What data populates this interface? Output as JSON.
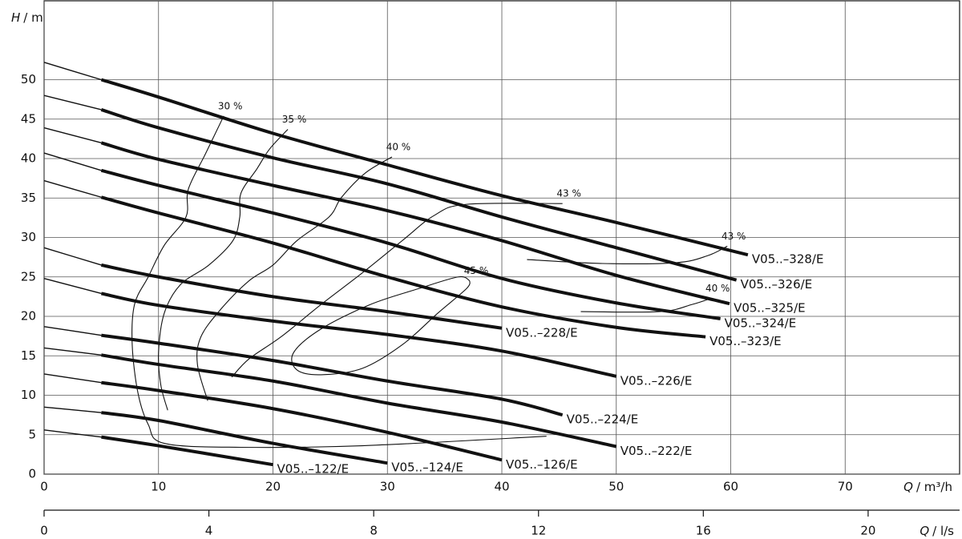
{
  "chart_data": {
    "type": "line",
    "xlabel_symbol": "Q",
    "xlabel_unit": "/ m³/h",
    "x2label_symbol": "Q",
    "x2label_unit": "/ l/s",
    "ylabel_symbol": "H",
    "ylabel_unit": "/ m",
    "xlim": [
      0,
      80
    ],
    "xticks": [
      0,
      10,
      20,
      30,
      40,
      50,
      60,
      70
    ],
    "x2lim": [
      0,
      22.22
    ],
    "x2ticks": [
      0,
      4,
      8,
      12,
      16,
      20
    ],
    "ylim": [
      0,
      60
    ],
    "yticks": [
      0,
      5,
      10,
      15,
      20,
      25,
      30,
      35,
      40,
      45,
      50
    ],
    "grid": true,
    "color": "#111111",
    "series": [
      {
        "name": "V05..–328/E",
        "x": [
          0,
          5,
          10,
          20,
          30,
          40,
          50,
          61.5
        ],
        "values": [
          52.2,
          50,
          47.8,
          43.2,
          39.2,
          35.3,
          31.9,
          27.8
        ]
      },
      {
        "name": "V05..–326/E",
        "x": [
          0,
          5,
          10,
          20,
          30,
          40,
          50,
          60.5
        ],
        "values": [
          48.0,
          46.2,
          43.9,
          40.1,
          36.8,
          32.6,
          28.7,
          24.6
        ]
      },
      {
        "name": "V05..–325/E",
        "x": [
          0,
          5,
          10,
          20,
          30,
          40,
          50,
          59.9
        ],
        "values": [
          43.9,
          42.0,
          39.9,
          36.6,
          33.4,
          29.6,
          25.2,
          21.6
        ]
      },
      {
        "name": "V05..–324/E",
        "x": [
          0,
          5,
          10,
          20,
          30,
          40,
          50,
          59.1
        ],
        "values": [
          40.7,
          38.5,
          36.6,
          33.1,
          29.3,
          24.8,
          21.7,
          19.7
        ]
      },
      {
        "name": "V05..–323/E",
        "x": [
          0,
          5,
          10,
          20,
          30,
          40,
          50,
          57.8
        ],
        "values": [
          37.2,
          35.1,
          33.1,
          29.3,
          25.0,
          21.2,
          18.6,
          17.4
        ]
      },
      {
        "name": "V05..–228/E",
        "x": [
          0,
          5,
          10,
          20,
          30,
          40
        ],
        "values": [
          28.7,
          26.5,
          25.0,
          22.5,
          20.6,
          18.5
        ]
      },
      {
        "name": "V05..–226/E",
        "x": [
          0,
          5,
          10,
          20,
          30,
          40,
          50
        ],
        "values": [
          24.8,
          22.9,
          21.4,
          19.4,
          17.7,
          15.6,
          12.4
        ]
      },
      {
        "name": "V05..–224/E",
        "x": [
          0,
          5,
          10,
          20,
          30,
          40,
          45.3
        ],
        "values": [
          18.7,
          17.6,
          16.6,
          14.4,
          11.8,
          9.5,
          7.5
        ]
      },
      {
        "name": "V05..–222/E",
        "x": [
          0,
          5,
          10,
          20,
          30,
          40,
          50
        ],
        "values": [
          16.0,
          15.1,
          13.9,
          11.8,
          9.0,
          6.6,
          3.5
        ]
      },
      {
        "name": "V05..–126/E",
        "x": [
          0,
          5,
          10,
          20,
          30,
          40
        ],
        "values": [
          12.7,
          11.6,
          10.6,
          8.3,
          5.3,
          1.8
        ]
      },
      {
        "name": "V05..–124/E",
        "x": [
          0,
          5,
          10,
          20,
          30
        ],
        "values": [
          8.5,
          7.8,
          6.8,
          3.9,
          1.4
        ]
      },
      {
        "name": "V05..–122/E",
        "x": [
          0,
          5,
          10,
          20
        ],
        "values": [
          5.6,
          4.7,
          3.6,
          1.2
        ]
      }
    ],
    "efficiency_curves": [
      {
        "name": "30 %",
        "x": [
          15.7,
          14.1,
          12.6,
          12.4,
          10.5,
          9.1,
          7.9,
          7.7,
          8.2,
          9.1,
          10.5,
          17.2,
          27.8,
          43.9
        ],
        "values": [
          45.4,
          40.6,
          36.1,
          32.6,
          29.0,
          25.0,
          21.5,
          16.4,
          10.3,
          6.3,
          3.9,
          3.4,
          3.6,
          4.8
        ]
      },
      {
        "name": "35 %",
        "x": [
          21.3,
          19.7,
          18.6,
          17.2,
          17.1,
          16.5,
          14.4,
          11.9,
          10.5,
          10.0,
          10.2,
          10.8
        ],
        "values": [
          43.7,
          41.2,
          38.7,
          35.6,
          32.6,
          29.6,
          26.5,
          24.0,
          20.4,
          15.4,
          11.3,
          8.1
        ]
      },
      {
        "name": "40 %",
        "x": [
          30.4,
          28.1,
          26.0,
          24.9,
          22.1,
          20.0,
          17.9,
          15.5,
          13.7,
          13.4,
          14.3
        ],
        "values": [
          40.2,
          38.2,
          35.1,
          32.6,
          29.6,
          26.5,
          24.5,
          21.0,
          17.4,
          13.9,
          9.3
        ]
      },
      {
        "name": "43 %",
        "x": [
          45.3,
          36.9,
          34.1,
          31.3,
          27.8,
          24.2,
          20.7,
          17.9,
          16.4
        ],
        "values": [
          34.3,
          34.2,
          32.8,
          29.6,
          25.5,
          21.5,
          17.4,
          14.6,
          12.3
        ]
      },
      {
        "name": "45 %",
        "x": [
          37.2,
          36.2,
          32.7,
          28.5,
          24.2,
          21.8,
          22.1,
          24.2,
          27.8,
          31.3,
          34.4,
          36.9,
          37.2
        ],
        "values": [
          24.5,
          25.0,
          23.5,
          21.5,
          18.4,
          15.4,
          13.2,
          12.6,
          13.4,
          16.4,
          20.4,
          23.5,
          24.5
        ]
      },
      {
        "name": "43 %",
        "x": [
          59.7,
          58.0,
          55.2,
          48.8,
          42.2
        ],
        "values": [
          28.9,
          27.7,
          26.8,
          26.7,
          27.2
        ]
      },
      {
        "name": "40 %",
        "x": [
          58.3,
          56.6,
          53.8,
          46.9
        ],
        "values": [
          22.3,
          21.5,
          20.6,
          20.6
        ]
      }
    ]
  }
}
